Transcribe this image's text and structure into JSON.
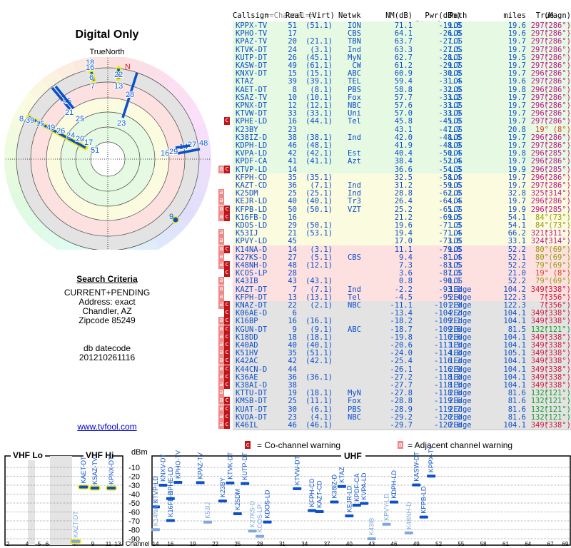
{
  "title": "Digital Only",
  "true_north_label": "TrueNorth",
  "north_label": "N",
  "search_criteria": {
    "heading": "Search Criteria",
    "lines": [
      "CURRENT+PENDING",
      "Address: exact",
      "Chandler, AZ",
      "Zipcode 85249"
    ],
    "db_label": "db datecode",
    "db_value": "201210261116"
  },
  "site_link": "www.tvfool.com",
  "table": {
    "group_headers": {
      "channel": "==Channel==",
      "signal": "========Signal========",
      "dist": "Dist",
      "azimuth": "==Azimuth=="
    },
    "columns": [
      "Callsign",
      "Real",
      "(Virt)",
      "Netwk",
      "NM(dB)",
      "Pwr(dBm)",
      "Path",
      "miles",
      "True",
      "(Magn)"
    ],
    "rows": [
      {
        "call": "KPPX-TV",
        "real": "51",
        "virt": "(51.1)",
        "net": "ION",
        "nm": "71.1",
        "pwr": "-19.8",
        "path": "LOS",
        "dist": "19.6",
        "true": "297°",
        "magn": "(286°)",
        "band": "green",
        "warn": "",
        "azc": "#c0188c"
      },
      {
        "call": "KPHO-TV",
        "real": "17",
        "virt": "",
        "net": "CBS",
        "nm": "64.1",
        "pwr": "-26.8",
        "path": "LOS",
        "dist": "19.6",
        "true": "297°",
        "magn": "(286°)",
        "band": "green",
        "warn": "",
        "azc": "#c0188c"
      },
      {
        "call": "KPAZ-TV",
        "real": "20",
        "virt": "(21.1)",
        "net": "TBN",
        "nm": "63.7",
        "pwr": "-27.1",
        "path": "LOS",
        "dist": "19.7",
        "true": "297°",
        "magn": "(286°)",
        "band": "green",
        "warn": "",
        "azc": "#c0188c"
      },
      {
        "call": "KTVK-DT",
        "real": "24",
        "virt": "(3.1)",
        "net": "Ind",
        "nm": "63.3",
        "pwr": "-27.5",
        "path": "LOS",
        "dist": "19.7",
        "true": "297°",
        "magn": "(286°)",
        "band": "green",
        "warn": "",
        "azc": "#c0188c"
      },
      {
        "call": "KUTP-DT",
        "real": "26",
        "virt": "(45.1)",
        "net": "MyN",
        "nm": "62.7",
        "pwr": "-28.1",
        "path": "LOS",
        "dist": "19.5",
        "true": "297°",
        "magn": "(286°)",
        "band": "green",
        "warn": "",
        "azc": "#c0188c"
      },
      {
        "call": "KASW-DT",
        "real": "49",
        "virt": "(61.1)",
        "net": "CW",
        "nm": "61.2",
        "pwr": "-29.7",
        "path": "LOS",
        "dist": "19.7",
        "true": "297°",
        "magn": "(286°)",
        "band": "green",
        "warn": "",
        "azc": "#c0188c"
      },
      {
        "call": "KNXV-DT",
        "real": "15",
        "virt": "(15.1)",
        "net": "ABC",
        "nm": "60.9",
        "pwr": "-30.0",
        "path": "LOS",
        "dist": "19.7",
        "true": "296°",
        "magn": "(286°)",
        "band": "green",
        "warn": "",
        "azc": "#c0188c"
      },
      {
        "call": "KTAZ",
        "real": "39",
        "virt": "(39.1)",
        "net": "TEL",
        "nm": "59.4",
        "pwr": "-31.4",
        "path": "LOS",
        "dist": "19.6",
        "true": "297°",
        "magn": "(286°)",
        "band": "green",
        "warn": "",
        "azc": "#c0188c"
      },
      {
        "call": "KAET-DT",
        "real": "8",
        "virt": "(8.1)",
        "net": "PBS",
        "nm": "58.8",
        "pwr": "-32.0",
        "path": "LOS",
        "dist": "19.8",
        "true": "296°",
        "magn": "(286°)",
        "band": "green",
        "warn": "",
        "azc": "#c0188c"
      },
      {
        "call": "KSAZ-TV",
        "real": "10",
        "virt": "(10.1)",
        "net": "Fox",
        "nm": "57.7",
        "pwr": "-33.2",
        "path": "LOS",
        "dist": "19.7",
        "true": "297°",
        "magn": "(286°)",
        "band": "green",
        "warn": "",
        "azc": "#c0188c"
      },
      {
        "call": "KPNX-DT",
        "real": "12",
        "virt": "(12.1)",
        "net": "NBC",
        "nm": "57.6",
        "pwr": "-33.2",
        "path": "LOS",
        "dist": "19.7",
        "true": "296°",
        "magn": "(286°)",
        "band": "green",
        "warn": "",
        "azc": "#c0188c"
      },
      {
        "call": "KTVW-DT",
        "real": "33",
        "virt": "(33.1)",
        "net": "Uni",
        "nm": "57.0",
        "pwr": "-33.9",
        "path": "LOS",
        "dist": "19.7",
        "true": "296°",
        "magn": "(286°)",
        "band": "green",
        "warn": "",
        "azc": "#c0188c"
      },
      {
        "call": "KPHE-LD",
        "real": "16",
        "virt": "(44.1)",
        "net": "Tel",
        "nm": "45.8",
        "pwr": "-45.0",
        "path": "LOS",
        "dist": "19.7",
        "true": "297°",
        "magn": "(286°)",
        "band": "green",
        "warn": "c",
        "azc": "#c0188c"
      },
      {
        "call": "K23BY",
        "real": "23",
        "virt": "",
        "net": "",
        "nm": "43.1",
        "pwr": "-47.7",
        "path": "LOS",
        "dist": "20.8",
        "true": "19°",
        "magn": "(8°)",
        "band": "green",
        "warn": "",
        "azc": "#e0401a"
      },
      {
        "call": "K38IZ-D",
        "real": "38",
        "virt": "(38.1)",
        "net": "Ind",
        "nm": "42.0",
        "pwr": "-48.8",
        "path": "LOS",
        "dist": "19.7",
        "true": "296°",
        "magn": "(286°)",
        "band": "green",
        "warn": "",
        "azc": "#c0188c"
      },
      {
        "call": "KDPH-LD",
        "real": "46",
        "virt": "(48.1)",
        "net": "",
        "nm": "41.9",
        "pwr": "-48.9",
        "path": "LOS",
        "dist": "19.7",
        "true": "297°",
        "magn": "(286°)",
        "band": "green",
        "warn": "",
        "azc": "#c0188c"
      },
      {
        "call": "KVPA-LD",
        "real": "42",
        "virt": "(42.1)",
        "net": "Est",
        "nm": "40.4",
        "pwr": "-50.4",
        "path": "LOS",
        "dist": "19.8",
        "true": "296°",
        "magn": "(285°)",
        "band": "green",
        "warn": "",
        "azc": "#c0188c"
      },
      {
        "call": "KPDF-CA",
        "real": "41",
        "virt": "(41.1)",
        "net": "Azt",
        "nm": "38.4",
        "pwr": "-52.4",
        "path": "LOS",
        "dist": "19.7",
        "true": "296°",
        "magn": "(286°)",
        "band": "green",
        "warn": "",
        "azc": "#c0188c"
      },
      {
        "call": "KTVP-LD",
        "real": "14",
        "virt": "",
        "net": "",
        "nm": "36.6",
        "pwr": "-54.3",
        "path": "LOS",
        "dist": "19.9",
        "true": "296°",
        "magn": "(285°)",
        "band": "green",
        "warn": "ac",
        "azc": "#c0188c"
      },
      {
        "call": "KFPH-CD",
        "real": "35",
        "virt": "(35.1)",
        "net": "",
        "nm": "32.5",
        "pwr": "-58.4",
        "path": "LOS",
        "dist": "19.7",
        "true": "296°",
        "magn": "(286°)",
        "band": "yellow",
        "warn": "",
        "azc": "#c0188c"
      },
      {
        "call": "KAZT-CD",
        "real": "36",
        "virt": "(7.1)",
        "net": "Ind",
        "nm": "31.2",
        "pwr": "-59.6",
        "path": "LOS",
        "dist": "19.7",
        "true": "297°",
        "magn": "(286°)",
        "band": "yellow",
        "warn": "",
        "azc": "#c0188c"
      },
      {
        "call": "K25DM",
        "real": "25",
        "virt": "(25.1)",
        "net": "Ind",
        "nm": "28.8",
        "pwr": "-62.0",
        "path": "LOS",
        "dist": "32.8",
        "true": "325°",
        "magn": "(314°)",
        "band": "yellow",
        "warn": "a",
        "azc": "#c0188c"
      },
      {
        "call": "KEJR-LD",
        "real": "40",
        "virt": "(40.1)",
        "net": "Tr3",
        "nm": "26.4",
        "pwr": "-64.4",
        "path": "LOS",
        "dist": "19.7",
        "true": "296°",
        "magn": "(286°)",
        "band": "yellow",
        "warn": "a",
        "azc": "#c0188c"
      },
      {
        "call": "KFPB-LD",
        "real": "50",
        "virt": "(50.1)",
        "net": "VZT",
        "nm": "25.2",
        "pwr": "-65.7",
        "path": "LOS",
        "dist": "19.9",
        "true": "296°",
        "magn": "(285°)",
        "band": "yellow",
        "warn": "ac",
        "azc": "#c0188c"
      },
      {
        "call": "K16FB-D",
        "real": "16",
        "virt": "",
        "net": "",
        "nm": "21.2",
        "pwr": "-69.6",
        "path": "LOS",
        "dist": "54.1",
        "true": "84°",
        "magn": "(73°)",
        "band": "yellow",
        "warn": "ac",
        "azc": "#9a9a10"
      },
      {
        "call": "KDOS-LD",
        "real": "29",
        "virt": "(50.1)",
        "net": "",
        "nm": "19.6",
        "pwr": "-71.3",
        "path": "LOS",
        "dist": "54.1",
        "true": "84°",
        "magn": "(73°)",
        "band": "yellow",
        "warn": "",
        "azc": "#9a9a10"
      },
      {
        "call": "K53IJ",
        "real": "21",
        "virt": "(53.1)",
        "net": "",
        "nm": "19.4",
        "pwr": "-71.4",
        "path": "LOS",
        "dist": "66.2",
        "true": "321°",
        "magn": "(311°)",
        "band": "yellow",
        "warn": "a",
        "azc": "#c0188c"
      },
      {
        "call": "KPVY-LD",
        "real": "45",
        "virt": "",
        "net": "",
        "nm": "17.0",
        "pwr": "-73.8",
        "path": "LOS",
        "dist": "33.1",
        "true": "324°",
        "magn": "(314°)",
        "band": "yellow",
        "warn": "a",
        "azc": "#c0188c"
      },
      {
        "call": "K14NA-D",
        "real": "14",
        "virt": "(3.1)",
        "net": "",
        "nm": "11.1",
        "pwr": "-79.8",
        "path": "LOS",
        "dist": "52.2",
        "true": "80°",
        "magn": "(69°)",
        "band": "pink",
        "warn": "ac",
        "azc": "#9a9a10"
      },
      {
        "call": "K27KS-D",
        "real": "27",
        "virt": "(5.1)",
        "net": "CBS",
        "nm": "9.4",
        "pwr": "-81.4",
        "path": "LOS",
        "dist": "52.1",
        "true": "80°",
        "magn": "(69°)",
        "band": "pink",
        "warn": "a",
        "azc": "#9a9a10"
      },
      {
        "call": "K48NH-D",
        "real": "48",
        "virt": "(12.1)",
        "net": "",
        "nm": "7.3",
        "pwr": "-83.5",
        "path": "LOS",
        "dist": "52.2",
        "true": "79°",
        "magn": "(69°)",
        "band": "pink",
        "warn": "ac",
        "azc": "#9a9a10"
      },
      {
        "call": "KCOS-LP",
        "real": "28",
        "virt": "",
        "net": "",
        "nm": "3.6",
        "pwr": "-87.3",
        "path": "LOS",
        "dist": "21.0",
        "true": "19°",
        "magn": "(8°)",
        "band": "pink",
        "warn": "c",
        "azc": "#e0401a"
      },
      {
        "call": "K43IB",
        "real": "43",
        "virt": "(43.1)",
        "net": "",
        "nm": "0.8",
        "pwr": "-90.1",
        "path": "LOS",
        "dist": "52.2",
        "true": "79°",
        "magn": "(69°)",
        "band": "pink",
        "warn": "a",
        "azc": "#9a9a10"
      },
      {
        "call": "KAZT-DT",
        "real": "7",
        "virt": "(7.1)",
        "net": "Ind",
        "nm": "-2.2",
        "pwr": "-93.0",
        "path": "1Edge",
        "dist": "104.2",
        "true": "349°",
        "magn": "(338°)",
        "band": "pink",
        "warn": "a",
        "azc": "#cc1c3c"
      },
      {
        "call": "KFPH-DT",
        "real": "13",
        "virt": "(13.1)",
        "net": "Tel",
        "nm": "-4.5",
        "pwr": "-95.4",
        "path": "2Edge",
        "dist": "122.3",
        "true": "7°",
        "magn": "(356°)",
        "band": "pink",
        "warn": "a",
        "azc": "#cc1c3c"
      },
      {
        "call": "KNAZ-DT",
        "real": "22",
        "virt": "(2.1)",
        "net": "NBC",
        "nm": "-11.1",
        "pwr": "-101.9",
        "path": "2Edge",
        "dist": "122.3",
        "true": "7°",
        "magn": "(356°)",
        "band": "gray",
        "warn": "ac",
        "azc": "#cc1c3c"
      },
      {
        "call": "K06AE-D",
        "real": "6",
        "virt": "",
        "net": "",
        "nm": "-13.4",
        "pwr": "-104.2",
        "path": "2Edge",
        "dist": "104.1",
        "true": "349°",
        "magn": "(338°)",
        "band": "gray",
        "warn": "c",
        "azc": "#cc1c3c"
      },
      {
        "call": "K16BP",
        "real": "16",
        "virt": "(16.1)",
        "net": "",
        "nm": "-18.2",
        "pwr": "-109.1",
        "path": "2Edge",
        "dist": "104.1",
        "true": "349°",
        "magn": "(338°)",
        "band": "gray",
        "warn": "ac",
        "azc": "#cc1c3c"
      },
      {
        "call": "KGUN-DT",
        "real": "9",
        "virt": "(9.1)",
        "net": "ABC",
        "nm": "-18.7",
        "pwr": "-109.6",
        "path": "2Edge",
        "dist": "81.5",
        "true": "132°",
        "magn": "(121°)",
        "band": "gray",
        "warn": "ac",
        "azc": "#1a9a2a"
      },
      {
        "call": "K18DD",
        "real": "18",
        "virt": "(18.1)",
        "net": "",
        "nm": "-19.8",
        "pwr": "-110.6",
        "path": "2Edge",
        "dist": "104.1",
        "true": "349°",
        "magn": "(338°)",
        "band": "gray",
        "warn": "ac",
        "azc": "#cc1c3c"
      },
      {
        "call": "K40AD",
        "real": "40",
        "virt": "(40.1)",
        "net": "",
        "nm": "-20.6",
        "pwr": "-111.5",
        "path": "1Edge",
        "dist": "104.1",
        "true": "349°",
        "magn": "(338°)",
        "band": "gray",
        "warn": "ac",
        "azc": "#cc1c3c"
      },
      {
        "call": "K51HV",
        "real": "35",
        "virt": "(51.1)",
        "net": "",
        "nm": "-24.0",
        "pwr": "-114.8",
        "path": "1Edge",
        "dist": "105.1",
        "true": "349°",
        "magn": "(338°)",
        "band": "gray",
        "warn": "ac",
        "azc": "#cc1c3c"
      },
      {
        "call": "K42AC",
        "real": "42",
        "virt": "(42.1)",
        "net": "",
        "nm": "-25.4",
        "pwr": "-116.3",
        "path": "1Edge",
        "dist": "104.1",
        "true": "349°",
        "magn": "(338°)",
        "band": "gray",
        "warn": "ac",
        "azc": "#cc1c3c"
      },
      {
        "call": "K44CN-D",
        "real": "44",
        "virt": "",
        "net": "",
        "nm": "-26.1",
        "pwr": "-116.9",
        "path": "2Edge",
        "dist": "104.1",
        "true": "349°",
        "magn": "(338°)",
        "band": "gray",
        "warn": "ac",
        "azc": "#cc1c3c"
      },
      {
        "call": "K36AE",
        "real": "36",
        "virt": "(36.1)",
        "net": "",
        "nm": "-27.2",
        "pwr": "-118.0",
        "path": "1Edge",
        "dist": "104.1",
        "true": "349°",
        "magn": "(338°)",
        "band": "gray",
        "warn": "ac",
        "azc": "#cc1c3c"
      },
      {
        "call": "K38AI-D",
        "real": "38",
        "virt": "",
        "net": "",
        "nm": "-27.7",
        "pwr": "-118.5",
        "path": "1Edge",
        "dist": "104.1",
        "true": "349°",
        "magn": "(338°)",
        "band": "gray",
        "warn": "ac",
        "azc": "#cc1c3c"
      },
      {
        "call": "KTTU-DT",
        "real": "19",
        "virt": "(18.1)",
        "net": "MyN",
        "nm": "-27.8",
        "pwr": "-118.6",
        "path": "2Edge",
        "dist": "81.6",
        "true": "132°",
        "magn": "(121°)",
        "band": "gray",
        "warn": "a",
        "azc": "#1a9a2a"
      },
      {
        "call": "KMSB-DT",
        "real": "25",
        "virt": "(11.1)",
        "net": "Fox",
        "nm": "-28.8",
        "pwr": "-119.6",
        "path": "2Edge",
        "dist": "81.6",
        "true": "132°",
        "magn": "(121°)",
        "band": "gray",
        "warn": "ac",
        "azc": "#1a9a2a"
      },
      {
        "call": "KUAT-DT",
        "real": "30",
        "virt": "(6.1)",
        "net": "PBS",
        "nm": "-28.9",
        "pwr": "-119.7",
        "path": "2Edge",
        "dist": "81.6",
        "true": "132°",
        "magn": "(121°)",
        "band": "gray",
        "warn": "ac",
        "azc": "#1a9a2a"
      },
      {
        "call": "KVOA-DT",
        "real": "23",
        "virt": "(4.1)",
        "net": "NBC",
        "nm": "-29.2",
        "pwr": "-120.0",
        "path": "2Edge",
        "dist": "81.6",
        "true": "132°",
        "magn": "(121°)",
        "band": "gray",
        "warn": "ac",
        "azc": "#1a9a2a"
      },
      {
        "call": "K46IL",
        "real": "46",
        "virt": "(46.1)",
        "net": "",
        "nm": "-29.7",
        "pwr": "-120.6",
        "path": "2Edge",
        "dist": "104.1",
        "true": "349°",
        "magn": "(338°)",
        "band": "gray",
        "warn": "ac",
        "azc": "#cc1c3c"
      }
    ]
  },
  "legend": {
    "cochannel_badge": "c",
    "cochannel_text": "= Co-channel warning",
    "adjacent_badge": "a",
    "adjacent_text": "= Adjacent channel warning"
  },
  "spectrum": {
    "vhf_lo_label": "VHF Lo",
    "vhf_hi_label": "VHF Hi",
    "uhf_label": "UHF",
    "dbm_label": "dBm",
    "channel_label": "Channel",
    "y_ticks": [
      "-10",
      "-20",
      "-30",
      "-40",
      "-50",
      "-60",
      "-70",
      "-80",
      "-90"
    ],
    "vhf_ticks": [
      "2",
      "4",
      "5",
      "6",
      "7",
      "9",
      "11",
      "13"
    ],
    "uhf_ticks": [
      "14",
      "16",
      "19",
      "22",
      "25",
      "28",
      "31",
      "34",
      "37",
      "40",
      "43",
      "46",
      "49",
      "52",
      "55",
      "58",
      "61",
      "64",
      "67",
      "69"
    ]
  },
  "colors": {
    "text_blue": "#0b4fc9",
    "cochannel_red": "#c0141a",
    "adjacent_pink": "#f08a8a",
    "band_green": "#e6f9e3",
    "band_yellow": "#fbfbe0",
    "band_pink": "#fde0e0",
    "band_gray": "#e3e3e3"
  }
}
